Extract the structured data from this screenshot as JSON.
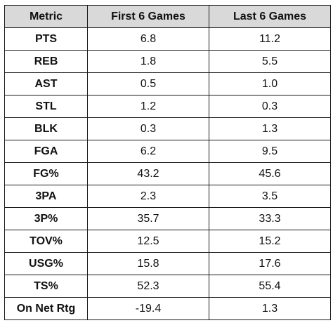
{
  "chart_data": {
    "type": "table",
    "columns": [
      "Metric",
      "First 6 Games",
      "Last 6 Games"
    ],
    "rows": [
      {
        "metric": "PTS",
        "first6": "6.8",
        "last6": "11.2"
      },
      {
        "metric": "REB",
        "first6": "1.8",
        "last6": "5.5"
      },
      {
        "metric": "AST",
        "first6": "0.5",
        "last6": "1.0"
      },
      {
        "metric": "STL",
        "first6": "1.2",
        "last6": "0.3"
      },
      {
        "metric": "BLK",
        "first6": "0.3",
        "last6": "1.3"
      },
      {
        "metric": "FGA",
        "first6": "6.2",
        "last6": "9.5"
      },
      {
        "metric": "FG%",
        "first6": "43.2",
        "last6": "45.6"
      },
      {
        "metric": "3PA",
        "first6": "2.3",
        "last6": "3.5"
      },
      {
        "metric": "3P%",
        "first6": "35.7",
        "last6": "33.3"
      },
      {
        "metric": "TOV%",
        "first6": "12.5",
        "last6": "15.2"
      },
      {
        "metric": "USG%",
        "first6": "15.8",
        "last6": "17.6"
      },
      {
        "metric": "TS%",
        "first6": "52.3",
        "last6": "55.4"
      },
      {
        "metric": "On Net Rtg",
        "first6": "-19.4",
        "last6": "1.3"
      }
    ],
    "header_bg": "#d9d9d9",
    "border_color": "#1a1a1a"
  }
}
